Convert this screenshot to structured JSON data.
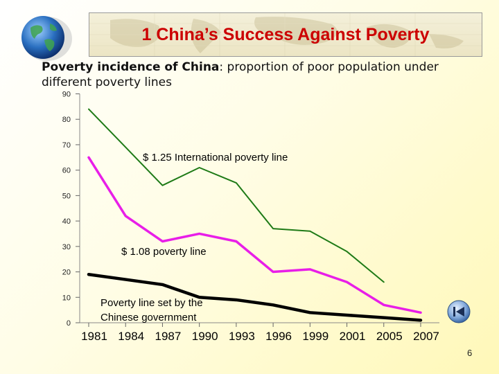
{
  "slide": {
    "title": "1 China’s Success Against Poverty",
    "subtitle_bold": "Poverty incidence of China",
    "subtitle_rest": ": proportion of poor population under different poverty lines",
    "page_number": "6",
    "nav_button_icon": "rewind-icon"
  },
  "colors": {
    "title": "#cc0000",
    "intl_line": "#1e7a16",
    "line108": "#e81ee8",
    "gov_line": "#000000"
  },
  "chart_data": {
    "type": "line",
    "title": "Poverty incidence of China",
    "xlabel": "",
    "ylabel": "",
    "ylim": [
      0,
      90
    ],
    "yticks": [
      0,
      10,
      20,
      30,
      40,
      50,
      60,
      70,
      80,
      90
    ],
    "categories": [
      "1981",
      "1984",
      "1987",
      "1990",
      "1993",
      "1996",
      "1999",
      "2001",
      "2005",
      "2007"
    ],
    "series": [
      {
        "name": "$ 1.25 International poverty line",
        "values": [
          84,
          69,
          54,
          61,
          55,
          37,
          36,
          28,
          16,
          null
        ],
        "color": "#1e7a16"
      },
      {
        "name": "$ 1.08 poverty line",
        "values": [
          65,
          42,
          32,
          35,
          32,
          20,
          21,
          16,
          7,
          4
        ],
        "color": "#e81ee8"
      },
      {
        "name": "Poverty line set by the Chinese government",
        "values": [
          19,
          17,
          15,
          10,
          9,
          7,
          4,
          3,
          2,
          1
        ],
        "color": "#000000"
      }
    ],
    "annotations": {
      "intl": "$ 1.25 International poverty line",
      "line108": "$ 1.08 poverty line",
      "gov_line1": "Poverty line set by the",
      "gov_line2": "Chinese government"
    }
  }
}
